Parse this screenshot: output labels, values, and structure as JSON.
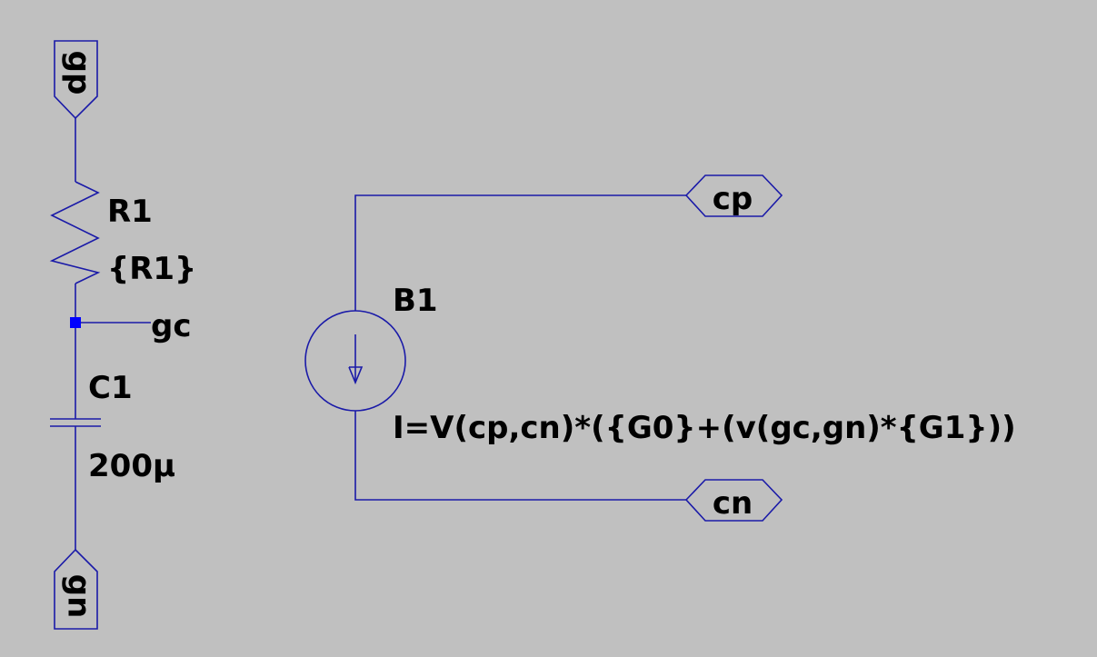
{
  "net_labels": {
    "gp": "gp",
    "gn": "gn",
    "gc": "gc",
    "cp": "cp",
    "cn": "cn"
  },
  "components": {
    "R1": {
      "name": "R1",
      "value": "{R1}"
    },
    "C1": {
      "name": "C1",
      "value": "200µ"
    },
    "B1": {
      "name": "B1",
      "expression": "I=V(cp,cn)*({G0}+(v(gc,gn)*{G1}))"
    }
  },
  "colors": {
    "background": "#c0c0c0",
    "wire": "#1a1aa8",
    "junction": "#0000ff",
    "text": "#000000"
  }
}
